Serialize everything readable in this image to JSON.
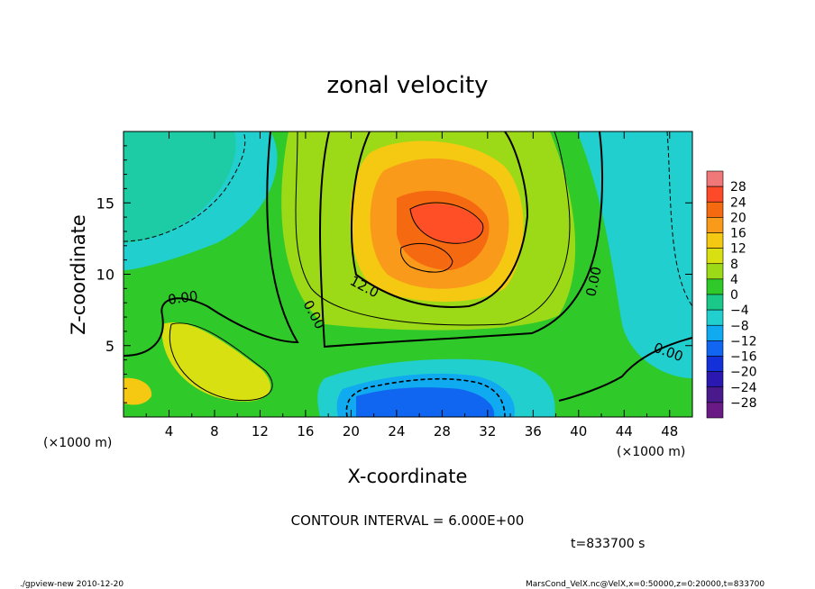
{
  "chart_data": {
    "type": "heatmap",
    "title": "zonal velocity",
    "xlabel": "X-coordinate",
    "ylabel": "Z-coordinate",
    "x_unit_left": "(×1000 m)",
    "x_unit_right": "(×1000 m)",
    "xlim": [
      0,
      50
    ],
    "ylim": [
      0,
      20
    ],
    "x_ticks": [
      "4",
      "8",
      "12",
      "16",
      "20",
      "24",
      "28",
      "32",
      "36",
      "40",
      "44",
      "48"
    ],
    "y_ticks": [
      "5",
      "10",
      "15"
    ],
    "colorbar": {
      "levels": [
        "28",
        "24",
        "20",
        "16",
        "12",
        "8",
        "4",
        "0",
        "−4",
        "−8",
        "−12",
        "−16",
        "−20",
        "−24",
        "−28"
      ],
      "colors": [
        "#f07878",
        "#ff4a2a",
        "#f56a10",
        "#fa9a1a",
        "#f5c812",
        "#d8e012",
        "#9cda18",
        "#2fc92a",
        "#1ac88a",
        "#21cfce",
        "#10aaf0",
        "#1066f0",
        "#1430d8",
        "#2a18b0",
        "#4a1a8c",
        "#6a1a84"
      ]
    },
    "contour_labels": [
      "0.00",
      "0.00",
      "12.0",
      "0.00",
      "0.00"
    ],
    "contour_interval": "CONTOUR INTERVAL = 6.000E+00",
    "time_label": "t=833700 s",
    "footer_left": "./gpview-new  2010-12-20",
    "footer_right": "MarsCond_VelX.nc@VelX,x=0:50000,z=0:20000,t=833700"
  }
}
